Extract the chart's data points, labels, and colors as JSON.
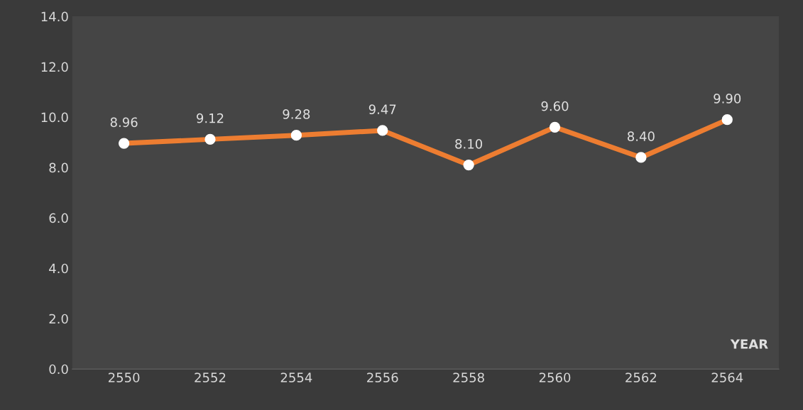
{
  "chart_data": {
    "type": "line",
    "xlabel": "YEAR",
    "categories": [
      "2550",
      "2552",
      "2554",
      "2556",
      "2558",
      "2560",
      "2562",
      "2564"
    ],
    "series": [
      {
        "color": "#ed7d31",
        "values": [
          8.96,
          9.12,
          9.28,
          9.47,
          8.1,
          9.6,
          8.4,
          9.9
        ],
        "value_labels": [
          "8.96",
          "9.12",
          "9.28",
          "9.47",
          "8.10",
          "9.60",
          "8.40",
          "9.90"
        ]
      }
    ],
    "ylim": [
      0,
      14
    ],
    "yticks": [
      {
        "value": 0,
        "label": "0.0"
      },
      {
        "value": 2,
        "label": "2.0"
      },
      {
        "value": 4,
        "label": "4.0"
      },
      {
        "value": 6,
        "label": "6.0"
      },
      {
        "value": 8,
        "label": "8.0"
      },
      {
        "value": 10,
        "label": "10.0"
      },
      {
        "value": 12,
        "label": "12.0"
      },
      {
        "value": 14,
        "label": "14.0"
      }
    ],
    "grid": false,
    "marker": "circle",
    "line_style": "solid",
    "legend": false
  }
}
